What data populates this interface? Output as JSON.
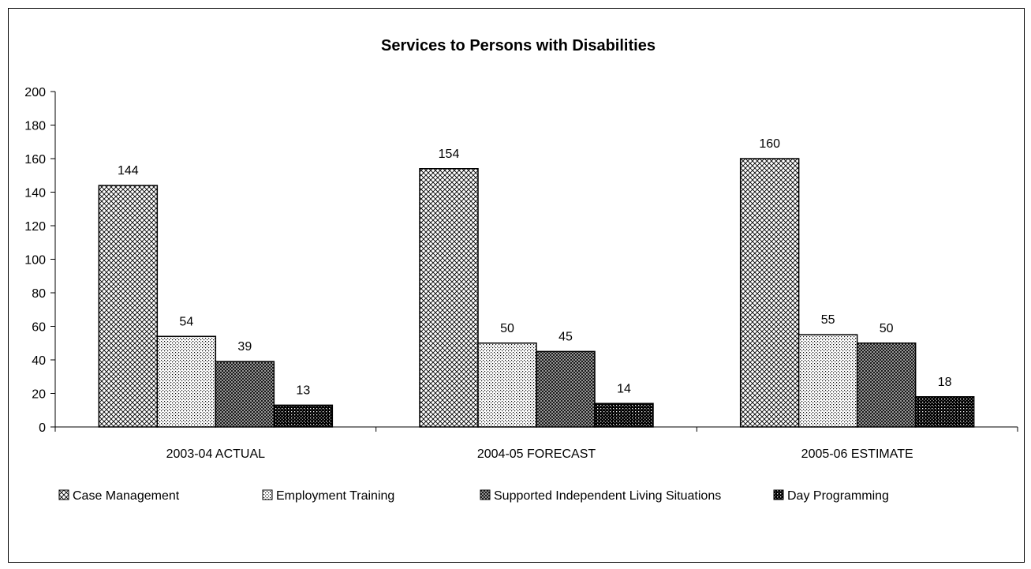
{
  "chart_data": {
    "type": "bar",
    "title": "Services to Persons with Disabilities",
    "xlabel": "",
    "ylabel": "",
    "ylim": [
      0,
      200
    ],
    "yticks": [
      0,
      20,
      40,
      60,
      80,
      100,
      120,
      140,
      160,
      180,
      200
    ],
    "grid": false,
    "legend_position": "bottom",
    "categories": [
      "2003-04 ACTUAL",
      "2004-05 FORECAST",
      "2005-06 ESTIMATE"
    ],
    "series": [
      {
        "name": "Case Management",
        "values": [
          144,
          154,
          160
        ],
        "pattern": "crosshatch"
      },
      {
        "name": "Employment Training",
        "values": [
          54,
          50,
          55
        ],
        "pattern": "dots"
      },
      {
        "name": "Supported Independent Living Situations",
        "values": [
          39,
          45,
          50
        ],
        "pattern": "dense-crosshatch"
      },
      {
        "name": "Day Programming",
        "values": [
          13,
          14,
          18
        ],
        "pattern": "dark-grid"
      }
    ],
    "data_labels": true
  }
}
